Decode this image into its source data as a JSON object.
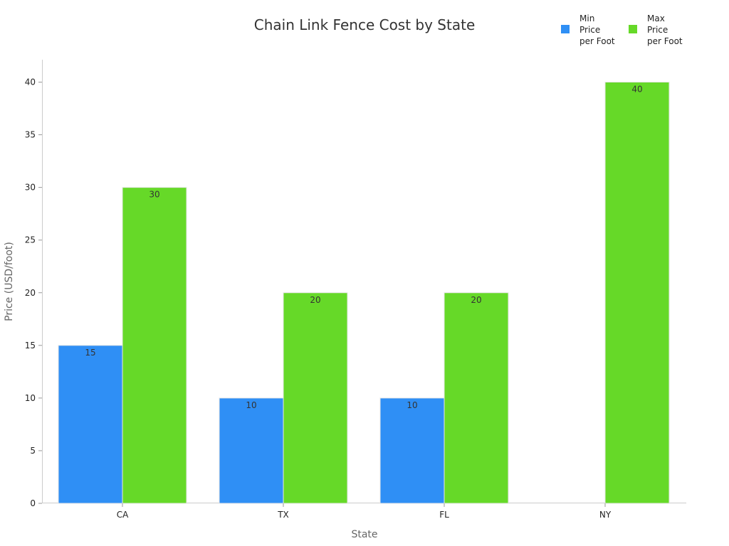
{
  "chart_data": {
    "type": "bar",
    "title": "Chain Link Fence Cost by State",
    "xlabel": "State",
    "ylabel": "Price (USD/foot)",
    "categories": [
      "CA",
      "TX",
      "FL",
      "NY"
    ],
    "series": [
      {
        "name": "Min Price per Foot",
        "values": [
          15,
          10,
          10,
          null
        ],
        "color": "#2f8ff5"
      },
      {
        "name": "Max Price per Foot",
        "values": [
          30,
          20,
          20,
          40
        ],
        "color": "#66d928"
      }
    ],
    "ylim": [
      0,
      42
    ],
    "yticks": [
      0,
      5,
      10,
      15,
      20,
      25,
      30,
      35,
      40
    ],
    "grid": false,
    "legend_position": "top-right"
  }
}
